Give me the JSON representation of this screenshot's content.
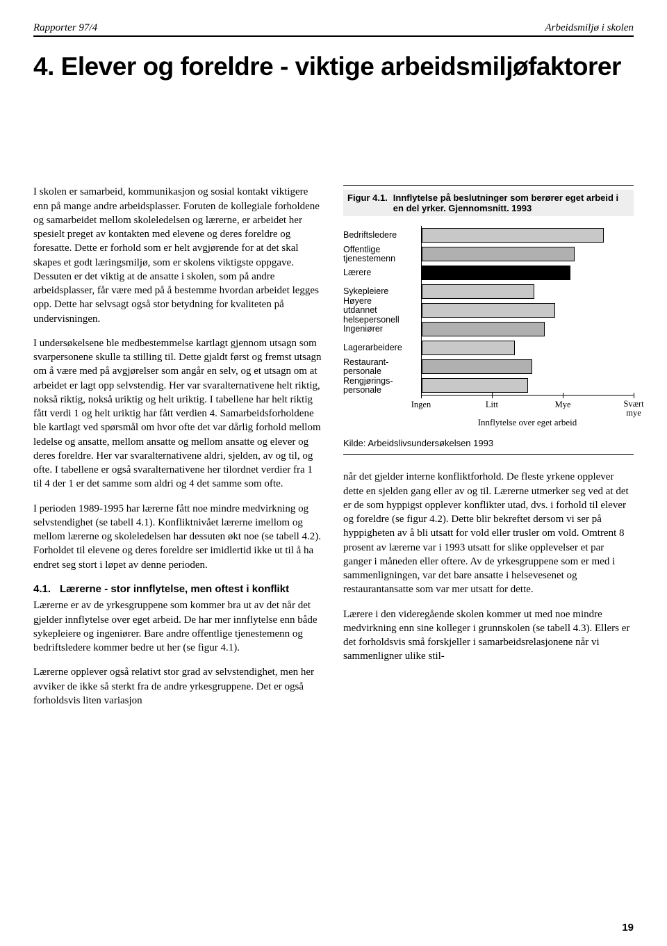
{
  "header": {
    "left": "Rapporter 97/4",
    "right": "Arbeidsmiljø i skolen"
  },
  "chapter_title": "4. Elever og foreldre - viktige arbeidsmiljøfaktorer",
  "paragraphs_left": [
    "I skolen er samarbeid, kommunikasjon og sosial kontakt viktigere enn på mange andre arbeidsplasser. Foruten de kollegiale forholdene og samarbeidet mellom skoleledelsen og lærerne, er arbeidet her spesielt preget av kontakten med elevene og deres foreldre og foresatte. Dette er forhold som er helt avgjørende for at det skal skapes et godt læringsmiljø, som er skolens viktigste oppgave. Dessuten er det viktig at de ansatte i skolen, som på andre arbeidsplasser, får være med på å bestemme hvordan arbeidet legges opp. Dette har selvsagt også stor betydning for kvaliteten på undervisningen.",
    "I undersøkelsene ble medbestemmelse kartlagt gjennom utsagn som svarpersonene skulle ta stilling til. Dette gjaldt først og fremst utsagn om å være med på avgjørelser som angår en selv, og et utsagn om at arbeidet er lagt opp selvstendig. Her var svaralternativene helt riktig, nokså riktig, nokså uriktig og helt uriktig. I tabellene har helt riktig fått verdi 1 og helt uriktig har fått verdien 4. Samarbeidsforholdene ble kartlagt ved spørsmål om hvor ofte det var dårlig forhold mellom ledelse og ansatte, mellom ansatte og mellom ansatte og elever og deres foreldre. Her var svaralternativene aldri, sjelden, av og til, og ofte. I tabellene er også svaralternativene her tilordnet verdier fra 1 til 4 der 1 er det samme som aldri og 4 det samme som ofte.",
    "I perioden 1989-1995 har lærerne fått noe mindre medvirkning og selvstendighet (se tabell 4.1). Konfliktnivået lærerne imellom og mellom lærerne og skoleledelsen har dessuten økt noe (se tabell 4.2). Forholdet til elevene og deres foreldre ser imidlertid ikke ut til å ha endret seg stort i løpet av denne perioden."
  ],
  "subsection": {
    "number": "4.1.",
    "title": "Lærerne - stor innflytelse, men oftest i konflikt"
  },
  "paragraphs_left_after": [
    "Lærerne er av de yrkesgruppene som kommer bra ut av det når det gjelder innflytelse over eget arbeid. De har mer innflytelse enn både sykepleiere og ingeniører. Bare andre offentlige tjenestemenn og bedriftsledere kommer bedre ut her (se figur 4.1).",
    "Lærerne opplever også relativt stor grad av selvstendighet, men her avviker de ikke så sterkt fra de andre yrkesgruppene. Det er også forholdsvis liten variasjon"
  ],
  "figure": {
    "label": "Figur 4.1.",
    "title": "Innflytelse på beslutninger som berører eget arbeid i en del yrker. Gjennomsnitt. 1993",
    "axis_title": "Innflytelse over eget arbeid",
    "axis_labels": [
      "Ingen",
      "Litt",
      "Mye",
      "Svært mye"
    ],
    "axis_positions_pct": [
      0,
      33.3,
      66.7,
      100
    ],
    "categories": [
      {
        "label": "Bedriftsledere",
        "value_pct": 86,
        "fill": "#c8c8c8"
      },
      {
        "label": "Offentlige tjenestemenn",
        "value_pct": 72,
        "fill": "#b0b0b0"
      },
      {
        "label": "Lærere",
        "value_pct": 70,
        "fill": "#000000"
      },
      {
        "label": "Sykepleiere",
        "value_pct": 53,
        "fill": "#c8c8c8"
      },
      {
        "label": "Høyere utdannet helsepersonell",
        "value_pct": 63,
        "fill": "#c8c8c8"
      },
      {
        "label": "Ingeniører",
        "value_pct": 58,
        "fill": "#b0b0b0"
      },
      {
        "label": "Lagerarbeidere",
        "value_pct": 44,
        "fill": "#c8c8c8"
      },
      {
        "label": "Restaurant-personale",
        "value_pct": 52,
        "fill": "#b0b0b0"
      },
      {
        "label": "Rengjørings-personale",
        "value_pct": 50,
        "fill": "#c8c8c8"
      }
    ],
    "source": "Kilde: Arbeidslivsundersøkelsen 1993"
  },
  "paragraphs_right": [
    "når det gjelder interne konfliktforhold. De fleste yrkene opplever dette en sjelden gang eller av og til. Lærerne utmerker seg ved at det er de som hyppigst opplever konflikter utad, dvs. i forhold til elever og foreldre (se figur 4.2). Dette blir bekreftet dersom vi ser på hyppigheten av å bli utsatt for vold eller trusler om vold. Omtrent 8 prosent av lærerne var i 1993 utsatt for slike opplevelser et par ganger i måneden eller oftere. Av de yrkesgruppene som er med i sammenligningen, var det bare ansatte i helsevesenet og restaurantansatte som var mer utsatt for dette.",
    "Lærere i den videregående skolen kommer ut med noe mindre medvirkning enn sine kolleger i grunnskolen (se tabell 4.3). Ellers er det forholdsvis små forskjeller i samarbeidsrelasjonene når vi sammenligner ulike stil-"
  ],
  "page_number": "19"
}
